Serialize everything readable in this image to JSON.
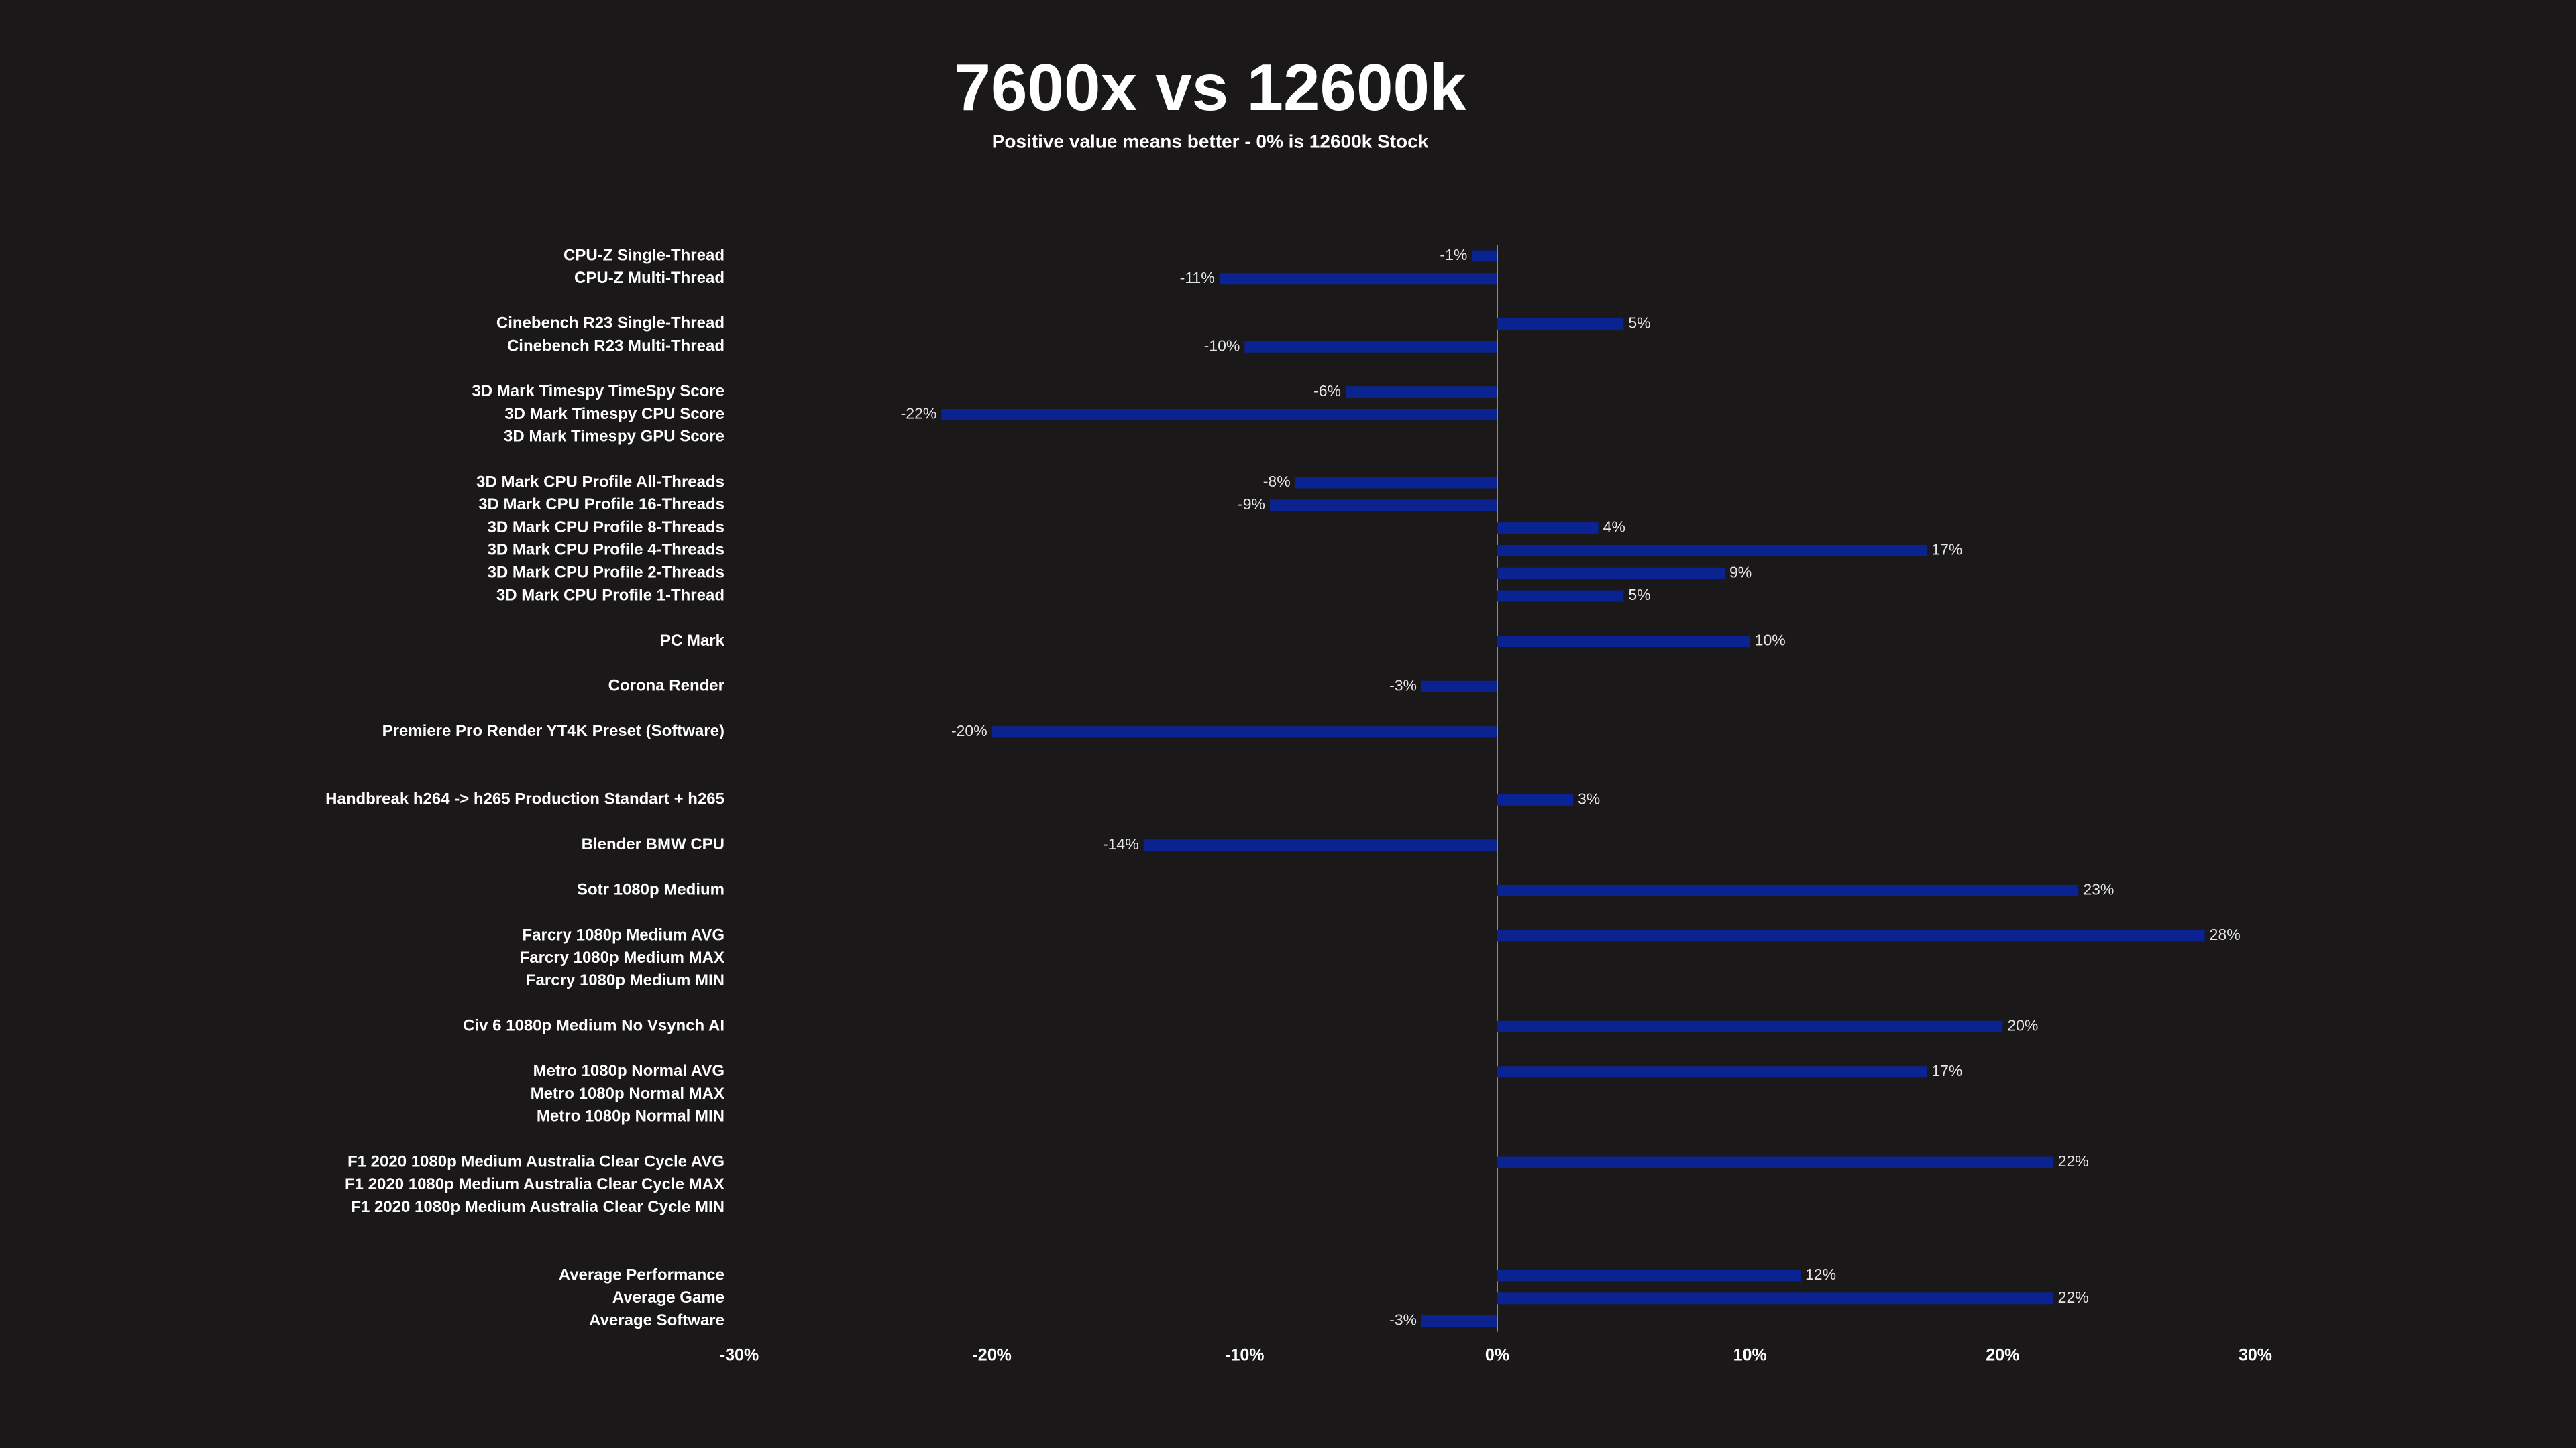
{
  "chart_data": {
    "type": "hbar",
    "title": "7600x vs 12600k",
    "subtitle": "Positive value means better - 0% is 12600k Stock",
    "categories": [
      "CPU-Z Single-Thread",
      "CPU-Z Multi-Thread",
      null,
      "Cinebench R23 Single-Thread",
      "Cinebench R23 Multi-Thread",
      null,
      "3D Mark Timespy TimeSpy Score",
      "3D Mark Timespy CPU Score",
      "3D Mark Timespy GPU Score",
      null,
      "3D Mark CPU Profile All-Threads",
      "3D Mark CPU Profile 16-Threads",
      "3D Mark CPU Profile 8-Threads",
      "3D Mark CPU Profile 4-Threads",
      "3D Mark CPU Profile 2-Threads",
      "3D Mark CPU Profile 1-Thread",
      null,
      "PC Mark",
      null,
      "Corona Render",
      null,
      "Premiere Pro Render YT4K Preset (Software)",
      null,
      null,
      "Handbreak h264 -> h265 Production Standart + h265",
      null,
      "Blender BMW CPU",
      null,
      "Sotr 1080p Medium",
      null,
      "Farcry 1080p Medium AVG",
      "Farcry 1080p Medium MAX",
      "Farcry 1080p Medium MIN",
      null,
      "Civ 6 1080p Medium No Vsynch AI",
      null,
      "Metro 1080p Normal AVG",
      "Metro 1080p Normal MAX",
      "Metro 1080p Normal MIN",
      null,
      "F1 2020 1080p Medium Australia Clear Cycle AVG",
      "F1 2020 1080p Medium Australia Clear Cycle MAX",
      "F1 2020 1080p Medium Australia Clear Cycle MIN",
      null,
      null,
      "Average Performance",
      "Average Game",
      "Average Software"
    ],
    "values": [
      -1,
      -11,
      null,
      5,
      -10,
      null,
      -6,
      -22,
      null,
      null,
      -8,
      -9,
      4,
      17,
      9,
      5,
      null,
      10,
      null,
      -3,
      null,
      -20,
      null,
      null,
      3,
      null,
      -14,
      null,
      23,
      null,
      28,
      null,
      null,
      null,
      20,
      null,
      17,
      null,
      null,
      null,
      22,
      null,
      null,
      null,
      null,
      12,
      22,
      -3
    ],
    "value_labels": [
      "-1%",
      "-11%",
      null,
      "5%",
      "-10%",
      null,
      "-6%",
      "-22%",
      null,
      null,
      "-8%",
      "-9%",
      "4%",
      "17%",
      "9%",
      "5%",
      null,
      "10%",
      null,
      "-3%",
      null,
      "-20%",
      null,
      null,
      "3%",
      null,
      "-14%",
      null,
      "23%",
      null,
      "28%",
      null,
      null,
      null,
      "20%",
      null,
      "17%",
      null,
      null,
      null,
      "22%",
      null,
      null,
      null,
      null,
      "12%",
      "22%",
      "-3%"
    ],
    "color": "#0b2391",
    "xlim": [
      -30,
      30
    ],
    "xticks": [
      {
        "value": -30,
        "label": "-30%"
      },
      {
        "value": -20,
        "label": "-20%"
      },
      {
        "value": -10,
        "label": "-10%"
      },
      {
        "value": 0,
        "label": "0%"
      },
      {
        "value": 10,
        "label": "10%"
      },
      {
        "value": 20,
        "label": "20%"
      },
      {
        "value": 30,
        "label": "30%"
      }
    ],
    "grid": false
  }
}
